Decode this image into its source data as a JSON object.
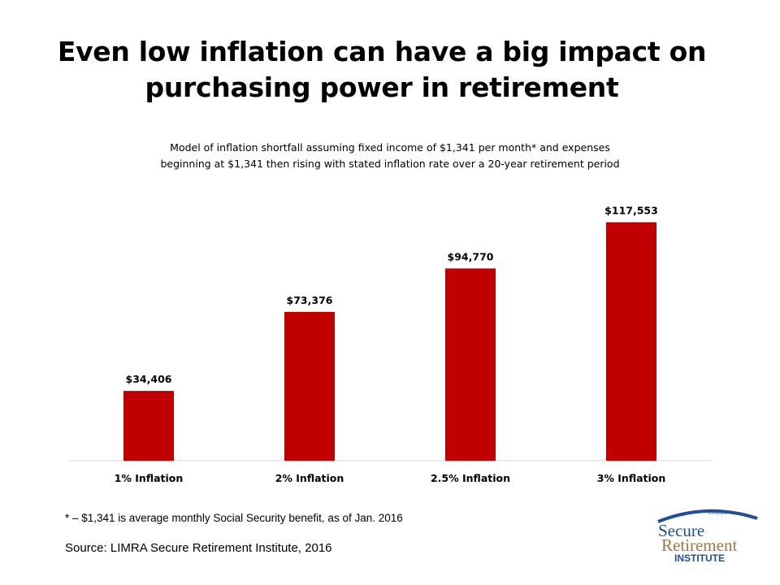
{
  "page": {
    "title_line1": "Even low inflation can have a big impact on",
    "title_line2": "purchasing power in retirement",
    "subtitle_line1": "Model of inflation shortfall assuming fixed income of $1,341 per month*  and expenses",
    "subtitle_line2": "beginning at $1,341 then rising with stated inflation rate over a 20-year retirement period",
    "footnote": "* – $1,341 is average monthly Social Security benefit, as of Jan. 2016",
    "source": "Source: LIMRA Secure Retirement Institute,  2016"
  },
  "logo": {
    "top_text": "LIMRA",
    "line1": "Secure",
    "line2": "Retirement",
    "line3": "INSTITUTE"
  },
  "colors": {
    "bar": "#C00000",
    "axis": "#D9D9D9",
    "logo_blue": "#1F4E9A",
    "logo_gold": "#9C7A3C"
  },
  "chart_data": {
    "type": "bar",
    "categories": [
      "1% Inflation",
      "2% Inflation",
      "2.5% Inflation",
      "3% Inflation"
    ],
    "values": [
      34406,
      73376,
      94770,
      117553
    ],
    "data_labels": [
      "$34,406",
      "$73,376",
      "$94,770",
      "$117,553"
    ],
    "title": "Model of inflation shortfall",
    "xlabel": "",
    "ylabel": "",
    "ylim": [
      0,
      135000
    ],
    "grid": false,
    "legend": "none"
  }
}
